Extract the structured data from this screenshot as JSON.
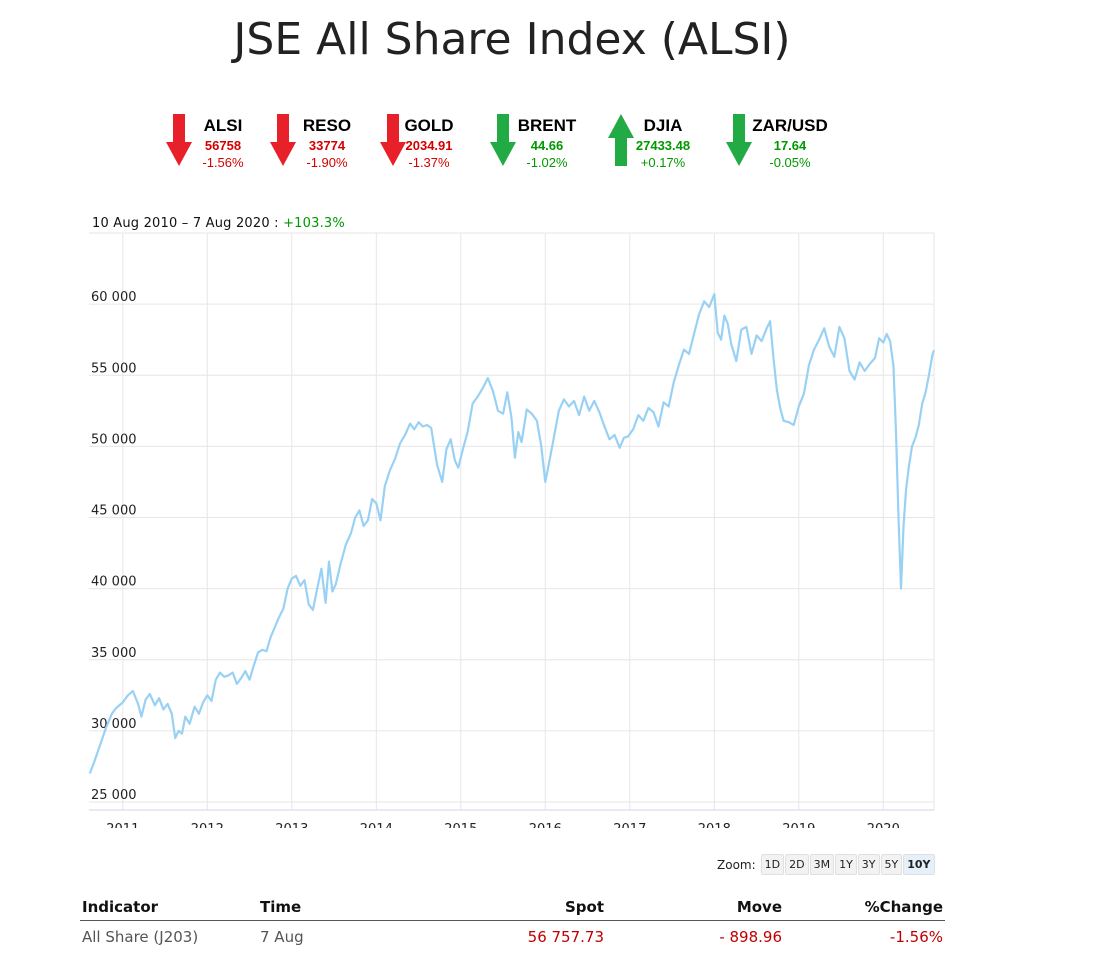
{
  "page": {
    "title": "JSE All Share Index (ALSI)"
  },
  "tickers": [
    {
      "name": "ALSI",
      "value": "56758",
      "change": "-1.56%",
      "direction": "down"
    },
    {
      "name": "RESO",
      "value": "33774",
      "change": "-1.90%",
      "direction": "down"
    },
    {
      "name": "GOLD",
      "value": "2034.91",
      "change": "-1.37%",
      "direction": "down"
    },
    {
      "name": "BRENT",
      "value": "44.66",
      "change": "-1.02%",
      "direction": "down-green"
    },
    {
      "name": "DJIA",
      "value": "27433.48",
      "change": "+0.17%",
      "direction": "up"
    },
    {
      "name": "ZAR/USD",
      "value": "17.64",
      "change": "-0.05%",
      "direction": "down-green"
    }
  ],
  "colors": {
    "red": "#d40000",
    "green": "#009900",
    "arrow_red": "#e8202a",
    "arrow_green": "#22aa44",
    "line": "#99d1f5"
  },
  "range": {
    "text": "10 Aug 2010 – 7 Aug 2020",
    "separator": " : ",
    "change": "+103.3%"
  },
  "chart_data": {
    "type": "line",
    "xlabel": "",
    "ylabel": "",
    "x_ticks": [
      "2011",
      "2012",
      "2013",
      "2014",
      "2015",
      "2016",
      "2017",
      "2018",
      "2019",
      "2020"
    ],
    "y_ticks": [
      "25 000",
      "30 000",
      "35 000",
      "40 000",
      "45 000",
      "50 000",
      "55 000",
      "60 000"
    ],
    "ylim": [
      25000,
      65000
    ],
    "xlim": [
      2010.6,
      2020.6
    ],
    "grid": true,
    "series": [
      {
        "points": [
          [
            2010.61,
            27000
          ],
          [
            2010.66,
            27800
          ],
          [
            2010.72,
            28800
          ],
          [
            2010.8,
            30200
          ],
          [
            2010.87,
            31200
          ],
          [
            2010.92,
            31600
          ],
          [
            2011.0,
            32000
          ],
          [
            2011.06,
            32500
          ],
          [
            2011.12,
            32800
          ],
          [
            2011.18,
            31900
          ],
          [
            2011.22,
            31000
          ],
          [
            2011.27,
            32200
          ],
          [
            2011.32,
            32600
          ],
          [
            2011.38,
            31800
          ],
          [
            2011.43,
            32300
          ],
          [
            2011.48,
            31500
          ],
          [
            2011.53,
            31900
          ],
          [
            2011.58,
            31200
          ],
          [
            2011.62,
            29500
          ],
          [
            2011.66,
            30000
          ],
          [
            2011.7,
            29800
          ],
          [
            2011.74,
            31000
          ],
          [
            2011.79,
            30500
          ],
          [
            2011.85,
            31700
          ],
          [
            2011.9,
            31200
          ],
          [
            2011.95,
            32000
          ],
          [
            2012.0,
            32500
          ],
          [
            2012.05,
            32100
          ],
          [
            2012.1,
            33600
          ],
          [
            2012.15,
            34100
          ],
          [
            2012.2,
            33800
          ],
          [
            2012.25,
            33900
          ],
          [
            2012.3,
            34100
          ],
          [
            2012.35,
            33300
          ],
          [
            2012.4,
            33700
          ],
          [
            2012.45,
            34200
          ],
          [
            2012.5,
            33600
          ],
          [
            2012.55,
            34600
          ],
          [
            2012.6,
            35500
          ],
          [
            2012.65,
            35700
          ],
          [
            2012.7,
            35600
          ],
          [
            2012.75,
            36600
          ],
          [
            2012.8,
            37300
          ],
          [
            2012.85,
            38000
          ],
          [
            2012.9,
            38600
          ],
          [
            2012.95,
            40000
          ],
          [
            2013.0,
            40700
          ],
          [
            2013.05,
            40900
          ],
          [
            2013.1,
            40200
          ],
          [
            2013.15,
            40600
          ],
          [
            2013.2,
            38900
          ],
          [
            2013.25,
            38500
          ],
          [
            2013.3,
            40000
          ],
          [
            2013.35,
            41400
          ],
          [
            2013.4,
            39000
          ],
          [
            2013.44,
            41900
          ],
          [
            2013.48,
            39800
          ],
          [
            2013.52,
            40300
          ],
          [
            2013.58,
            41800
          ],
          [
            2013.64,
            43100
          ],
          [
            2013.7,
            43900
          ],
          [
            2013.75,
            45000
          ],
          [
            2013.8,
            45500
          ],
          [
            2013.85,
            44400
          ],
          [
            2013.9,
            44800
          ],
          [
            2013.95,
            46300
          ],
          [
            2014.0,
            46000
          ],
          [
            2014.05,
            44800
          ],
          [
            2014.1,
            47200
          ],
          [
            2014.16,
            48300
          ],
          [
            2014.22,
            49100
          ],
          [
            2014.28,
            50200
          ],
          [
            2014.34,
            50800
          ],
          [
            2014.4,
            51600
          ],
          [
            2014.45,
            51200
          ],
          [
            2014.5,
            51700
          ],
          [
            2014.55,
            51400
          ],
          [
            2014.6,
            51500
          ],
          [
            2014.65,
            51300
          ],
          [
            2014.72,
            48700
          ],
          [
            2014.78,
            47500
          ],
          [
            2014.83,
            49800
          ],
          [
            2014.88,
            50500
          ],
          [
            2014.93,
            49000
          ],
          [
            2014.97,
            48500
          ],
          [
            2015.02,
            49700
          ],
          [
            2015.08,
            51000
          ],
          [
            2015.14,
            53000
          ],
          [
            2015.2,
            53500
          ],
          [
            2015.26,
            54100
          ],
          [
            2015.32,
            54800
          ],
          [
            2015.38,
            53900
          ],
          [
            2015.44,
            52500
          ],
          [
            2015.5,
            52300
          ],
          [
            2015.55,
            53800
          ],
          [
            2015.6,
            52000
          ],
          [
            2015.64,
            49200
          ],
          [
            2015.68,
            51000
          ],
          [
            2015.72,
            50300
          ],
          [
            2015.78,
            52600
          ],
          [
            2015.84,
            52300
          ],
          [
            2015.9,
            51800
          ],
          [
            2015.95,
            50100
          ],
          [
            2016.0,
            47500
          ],
          [
            2016.04,
            48700
          ],
          [
            2016.1,
            50600
          ],
          [
            2016.16,
            52500
          ],
          [
            2016.22,
            53300
          ],
          [
            2016.28,
            52800
          ],
          [
            2016.34,
            53200
          ],
          [
            2016.4,
            52200
          ],
          [
            2016.46,
            53500
          ],
          [
            2016.52,
            52500
          ],
          [
            2016.58,
            53200
          ],
          [
            2016.64,
            52400
          ],
          [
            2016.7,
            51400
          ],
          [
            2016.76,
            50500
          ],
          [
            2016.82,
            50800
          ],
          [
            2016.88,
            49900
          ],
          [
            2016.93,
            50600
          ],
          [
            2016.98,
            50700
          ],
          [
            2017.04,
            51200
          ],
          [
            2017.1,
            52200
          ],
          [
            2017.16,
            51800
          ],
          [
            2017.22,
            52700
          ],
          [
            2017.28,
            52400
          ],
          [
            2017.34,
            51400
          ],
          [
            2017.4,
            53100
          ],
          [
            2017.46,
            52800
          ],
          [
            2017.52,
            54500
          ],
          [
            2017.58,
            55700
          ],
          [
            2017.64,
            56800
          ],
          [
            2017.7,
            56500
          ],
          [
            2017.76,
            57900
          ],
          [
            2017.82,
            59300
          ],
          [
            2017.88,
            60200
          ],
          [
            2017.94,
            59800
          ],
          [
            2018.0,
            60700
          ],
          [
            2018.04,
            58000
          ],
          [
            2018.08,
            57500
          ],
          [
            2018.12,
            59200
          ],
          [
            2018.16,
            58600
          ],
          [
            2018.2,
            57200
          ],
          [
            2018.26,
            56000
          ],
          [
            2018.32,
            58200
          ],
          [
            2018.38,
            58400
          ],
          [
            2018.44,
            56500
          ],
          [
            2018.5,
            57800
          ],
          [
            2018.56,
            57400
          ],
          [
            2018.62,
            58300
          ],
          [
            2018.66,
            58800
          ],
          [
            2018.7,
            56200
          ],
          [
            2018.74,
            54000
          ],
          [
            2018.78,
            52700
          ],
          [
            2018.82,
            51800
          ],
          [
            2018.88,
            51700
          ],
          [
            2018.94,
            51500
          ],
          [
            2019.0,
            52800
          ],
          [
            2019.06,
            53700
          ],
          [
            2019.12,
            55700
          ],
          [
            2019.18,
            56800
          ],
          [
            2019.24,
            57500
          ],
          [
            2019.3,
            58300
          ],
          [
            2019.36,
            57000
          ],
          [
            2019.42,
            56300
          ],
          [
            2019.48,
            58400
          ],
          [
            2019.54,
            57600
          ],
          [
            2019.6,
            55300
          ],
          [
            2019.66,
            54700
          ],
          [
            2019.72,
            55900
          ],
          [
            2019.78,
            55300
          ],
          [
            2019.84,
            55800
          ],
          [
            2019.9,
            56200
          ],
          [
            2019.95,
            57600
          ],
          [
            2020.0,
            57300
          ],
          [
            2020.04,
            57900
          ],
          [
            2020.08,
            57400
          ],
          [
            2020.12,
            55700
          ],
          [
            2020.15,
            51000
          ],
          [
            2020.18,
            45000
          ],
          [
            2020.21,
            40000
          ],
          [
            2020.24,
            44500
          ],
          [
            2020.27,
            47000
          ],
          [
            2020.3,
            48500
          ],
          [
            2020.34,
            50000
          ],
          [
            2020.38,
            50600
          ],
          [
            2020.42,
            51500
          ],
          [
            2020.46,
            53000
          ],
          [
            2020.5,
            53800
          ],
          [
            2020.54,
            55000
          ],
          [
            2020.58,
            56400
          ],
          [
            2020.6,
            56758
          ]
        ]
      }
    ]
  },
  "zoom": {
    "label": "Zoom:",
    "buttons": [
      "1D",
      "2D",
      "3M",
      "1Y",
      "3Y",
      "5Y",
      "10Y"
    ],
    "active": "10Y"
  },
  "table": {
    "headers": {
      "indicator": "Indicator",
      "time": "Time",
      "spot": "Spot",
      "move": "Move",
      "pct": "%Change"
    },
    "row": {
      "indicator": "All Share (J203)",
      "time": "7 Aug",
      "spot": "56 757.73",
      "move": "- 898.96",
      "pct": "-1.56%"
    }
  }
}
